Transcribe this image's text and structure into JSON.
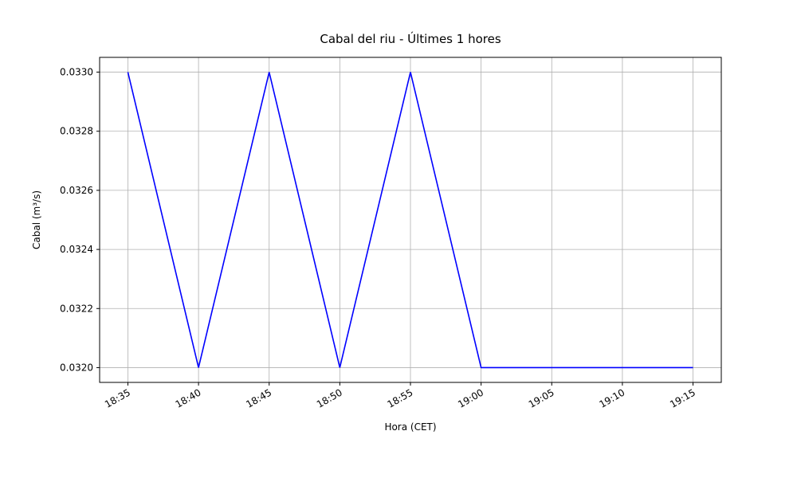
{
  "chart_data": {
    "type": "line",
    "title": "Cabal del riu - Últimes 1 hores",
    "xlabel": "Hora (CET)",
    "ylabel": "Cabal (m³/s)",
    "x_tick_labels": [
      "18:35",
      "18:40",
      "18:45",
      "18:50",
      "18:55",
      "19:00",
      "19:05",
      "19:10",
      "19:15"
    ],
    "x_minutes": [
      1115,
      1120,
      1125,
      1130,
      1135,
      1140,
      1145,
      1150,
      1155
    ],
    "values": [
      0.033,
      0.032,
      0.033,
      0.032,
      0.033,
      0.032,
      0.032,
      0.032,
      0.032
    ],
    "y_ticks": [
      0.032,
      0.0322,
      0.0324,
      0.0326,
      0.0328,
      0.033
    ],
    "xlim": [
      1113,
      1157
    ],
    "ylim": [
      0.03195,
      0.03305
    ],
    "grid": true,
    "legend": "none",
    "line_color": "#0000ff",
    "grid_color": "#b0b0b0",
    "axis_color": "#000000",
    "x_tick_rotation": 30
  }
}
